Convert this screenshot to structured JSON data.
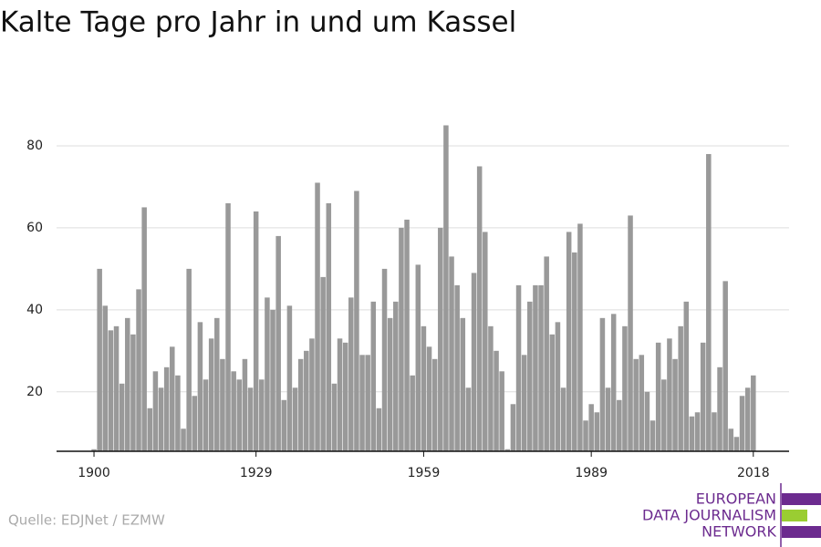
{
  "chart_data": {
    "type": "bar",
    "title": "Kalte Tage pro Jahr in und um Kassel",
    "source": "Quelle: EDJNet / EZMW",
    "color": "#999999",
    "x": [
      1900,
      1901,
      1902,
      1903,
      1904,
      1905,
      1906,
      1907,
      1908,
      1909,
      1910,
      1911,
      1912,
      1913,
      1914,
      1915,
      1916,
      1917,
      1918,
      1919,
      1920,
      1921,
      1922,
      1923,
      1924,
      1925,
      1926,
      1927,
      1928,
      1929,
      1930,
      1931,
      1932,
      1933,
      1934,
      1935,
      1936,
      1937,
      1938,
      1939,
      1940,
      1941,
      1942,
      1943,
      1944,
      1945,
      1946,
      1947,
      1948,
      1949,
      1950,
      1951,
      1952,
      1953,
      1954,
      1955,
      1956,
      1957,
      1958,
      1959,
      1960,
      1961,
      1962,
      1963,
      1964,
      1965,
      1966,
      1967,
      1968,
      1969,
      1970,
      1971,
      1972,
      1973,
      1974,
      1975,
      1976,
      1977,
      1978,
      1979,
      1980,
      1981,
      1982,
      1983,
      1984,
      1985,
      1986,
      1987,
      1988,
      1989,
      1990,
      1991,
      1992,
      1993,
      1994,
      1995,
      1996,
      1997,
      1998,
      1999,
      2000,
      2001,
      2002,
      2003,
      2004,
      2005,
      2006,
      2007,
      2008,
      2009,
      2010,
      2011,
      2012,
      2013,
      2014,
      2015,
      2016,
      2017,
      2018
    ],
    "values": [
      6,
      50,
      41,
      35,
      36,
      22,
      38,
      34,
      45,
      65,
      16,
      25,
      21,
      26,
      31,
      24,
      11,
      50,
      19,
      37,
      23,
      33,
      38,
      28,
      66,
      25,
      23,
      28,
      21,
      64,
      23,
      43,
      40,
      58,
      18,
      41,
      21,
      28,
      30,
      33,
      71,
      48,
      66,
      22,
      33,
      32,
      43,
      69,
      29,
      29,
      42,
      16,
      50,
      38,
      42,
      60,
      62,
      24,
      51,
      36,
      31,
      28,
      60,
      85,
      53,
      46,
      38,
      21,
      49,
      75,
      59,
      36,
      30,
      25,
      6,
      17,
      46,
      29,
      42,
      46,
      46,
      53,
      34,
      37,
      21,
      59,
      54,
      61,
      13,
      17,
      15,
      38,
      21,
      39,
      18,
      36,
      63,
      28,
      29,
      20,
      13,
      32,
      23,
      33,
      28,
      36,
      42,
      14,
      15,
      32,
      78,
      15,
      26,
      47,
      11,
      9,
      19,
      21,
      24
    ],
    "xlim": [
      1893.3,
      2024.4
    ],
    "xticks": [
      1900,
      1929,
      1959,
      1989,
      2018
    ],
    "ylim": [
      5.5,
      90
    ],
    "yticks": [
      20,
      40,
      60,
      80
    ],
    "grid": true
  },
  "logo": [
    "EUROPEAN",
    "DATA JOURNALISM",
    "NETWORK"
  ]
}
